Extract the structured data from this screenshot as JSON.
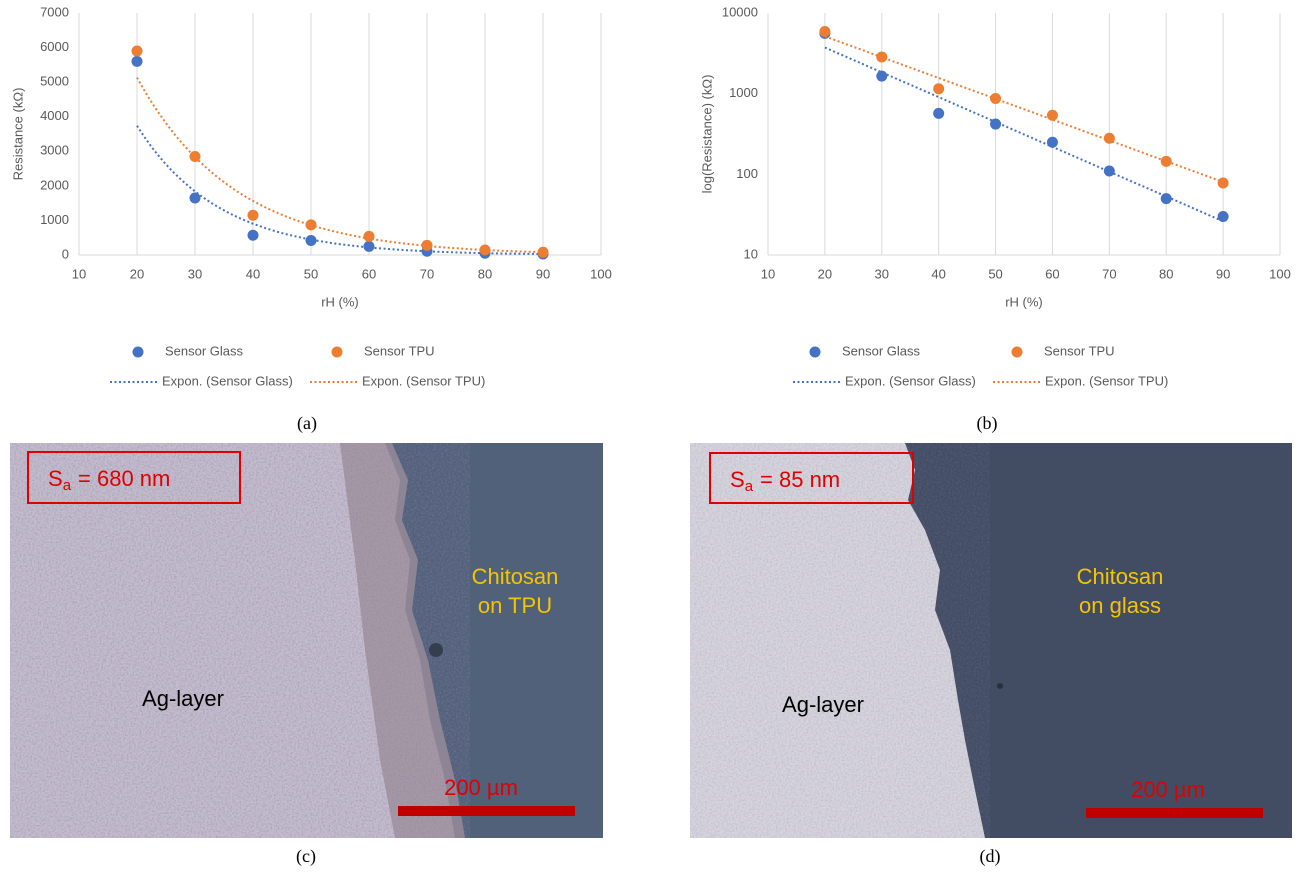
{
  "chart_data": [
    {
      "type": "scatter",
      "caption": "(a)",
      "xlabel": "rH (%)",
      "ylabel": "Resistance (kΩ)",
      "x": [
        20,
        30,
        40,
        50,
        60,
        70,
        80,
        90
      ],
      "xlim": [
        10,
        100
      ],
      "xticks": [
        10,
        20,
        30,
        40,
        50,
        60,
        70,
        80,
        90,
        100
      ],
      "ylim": [
        0,
        7000
      ],
      "yticks": [
        0,
        1000,
        2000,
        3000,
        4000,
        5000,
        6000,
        7000
      ],
      "log_y": false,
      "grid": "x",
      "series": [
        {
          "name": "Sensor Glass",
          "color": "#4472c4",
          "values": [
            5600,
            1650,
            570,
            420,
            250,
            110,
            50,
            30
          ],
          "trendline": {
            "name": "Expon. (Sensor Glass)",
            "kind": "exponential"
          }
        },
        {
          "name": "Sensor TPU",
          "color": "#ed7d31",
          "values": [
            5900,
            2850,
            1150,
            870,
            540,
            280,
            145,
            78
          ],
          "trendline": {
            "name": "Expon. (Sensor TPU)",
            "kind": "exponential"
          }
        }
      ]
    },
    {
      "type": "scatter",
      "caption": "(b)",
      "xlabel": "rH (%)",
      "ylabel": "log(Resistance) (kΩ)",
      "x": [
        20,
        30,
        40,
        50,
        60,
        70,
        80,
        90
      ],
      "xlim": [
        10,
        100
      ],
      "xticks": [
        10,
        20,
        30,
        40,
        50,
        60,
        70,
        80,
        90,
        100
      ],
      "ylim": [
        10,
        10000
      ],
      "yticks": [
        10,
        100,
        1000,
        10000
      ],
      "log_y": true,
      "grid": "x",
      "series": [
        {
          "name": "Sensor Glass",
          "color": "#4472c4",
          "values": [
            5600,
            1650,
            570,
            420,
            250,
            110,
            50,
            30
          ],
          "trendline": {
            "name": "Expon. (Sensor Glass)",
            "kind": "exponential"
          }
        },
        {
          "name": "Sensor TPU",
          "color": "#ed7d31",
          "values": [
            5900,
            2850,
            1150,
            870,
            540,
            280,
            145,
            78
          ],
          "trendline": {
            "name": "Expon. (Sensor TPU)",
            "kind": "exponential"
          }
        }
      ]
    }
  ],
  "micrographs": [
    {
      "caption": "(c)",
      "roughness": {
        "symbol": "S",
        "subscript": "a",
        "text": "= 680 nm"
      },
      "layer": "Ag-layer",
      "coating": [
        "Chitosan",
        "on TPU"
      ],
      "scale_bar": "200 µm"
    },
    {
      "caption": "(d)",
      "roughness": {
        "symbol": "S",
        "subscript": "a",
        "text": "= 85 nm"
      },
      "layer": "Ag-layer",
      "coating": [
        "Chitosan",
        "on glass"
      ],
      "scale_bar": "200 µm"
    }
  ]
}
